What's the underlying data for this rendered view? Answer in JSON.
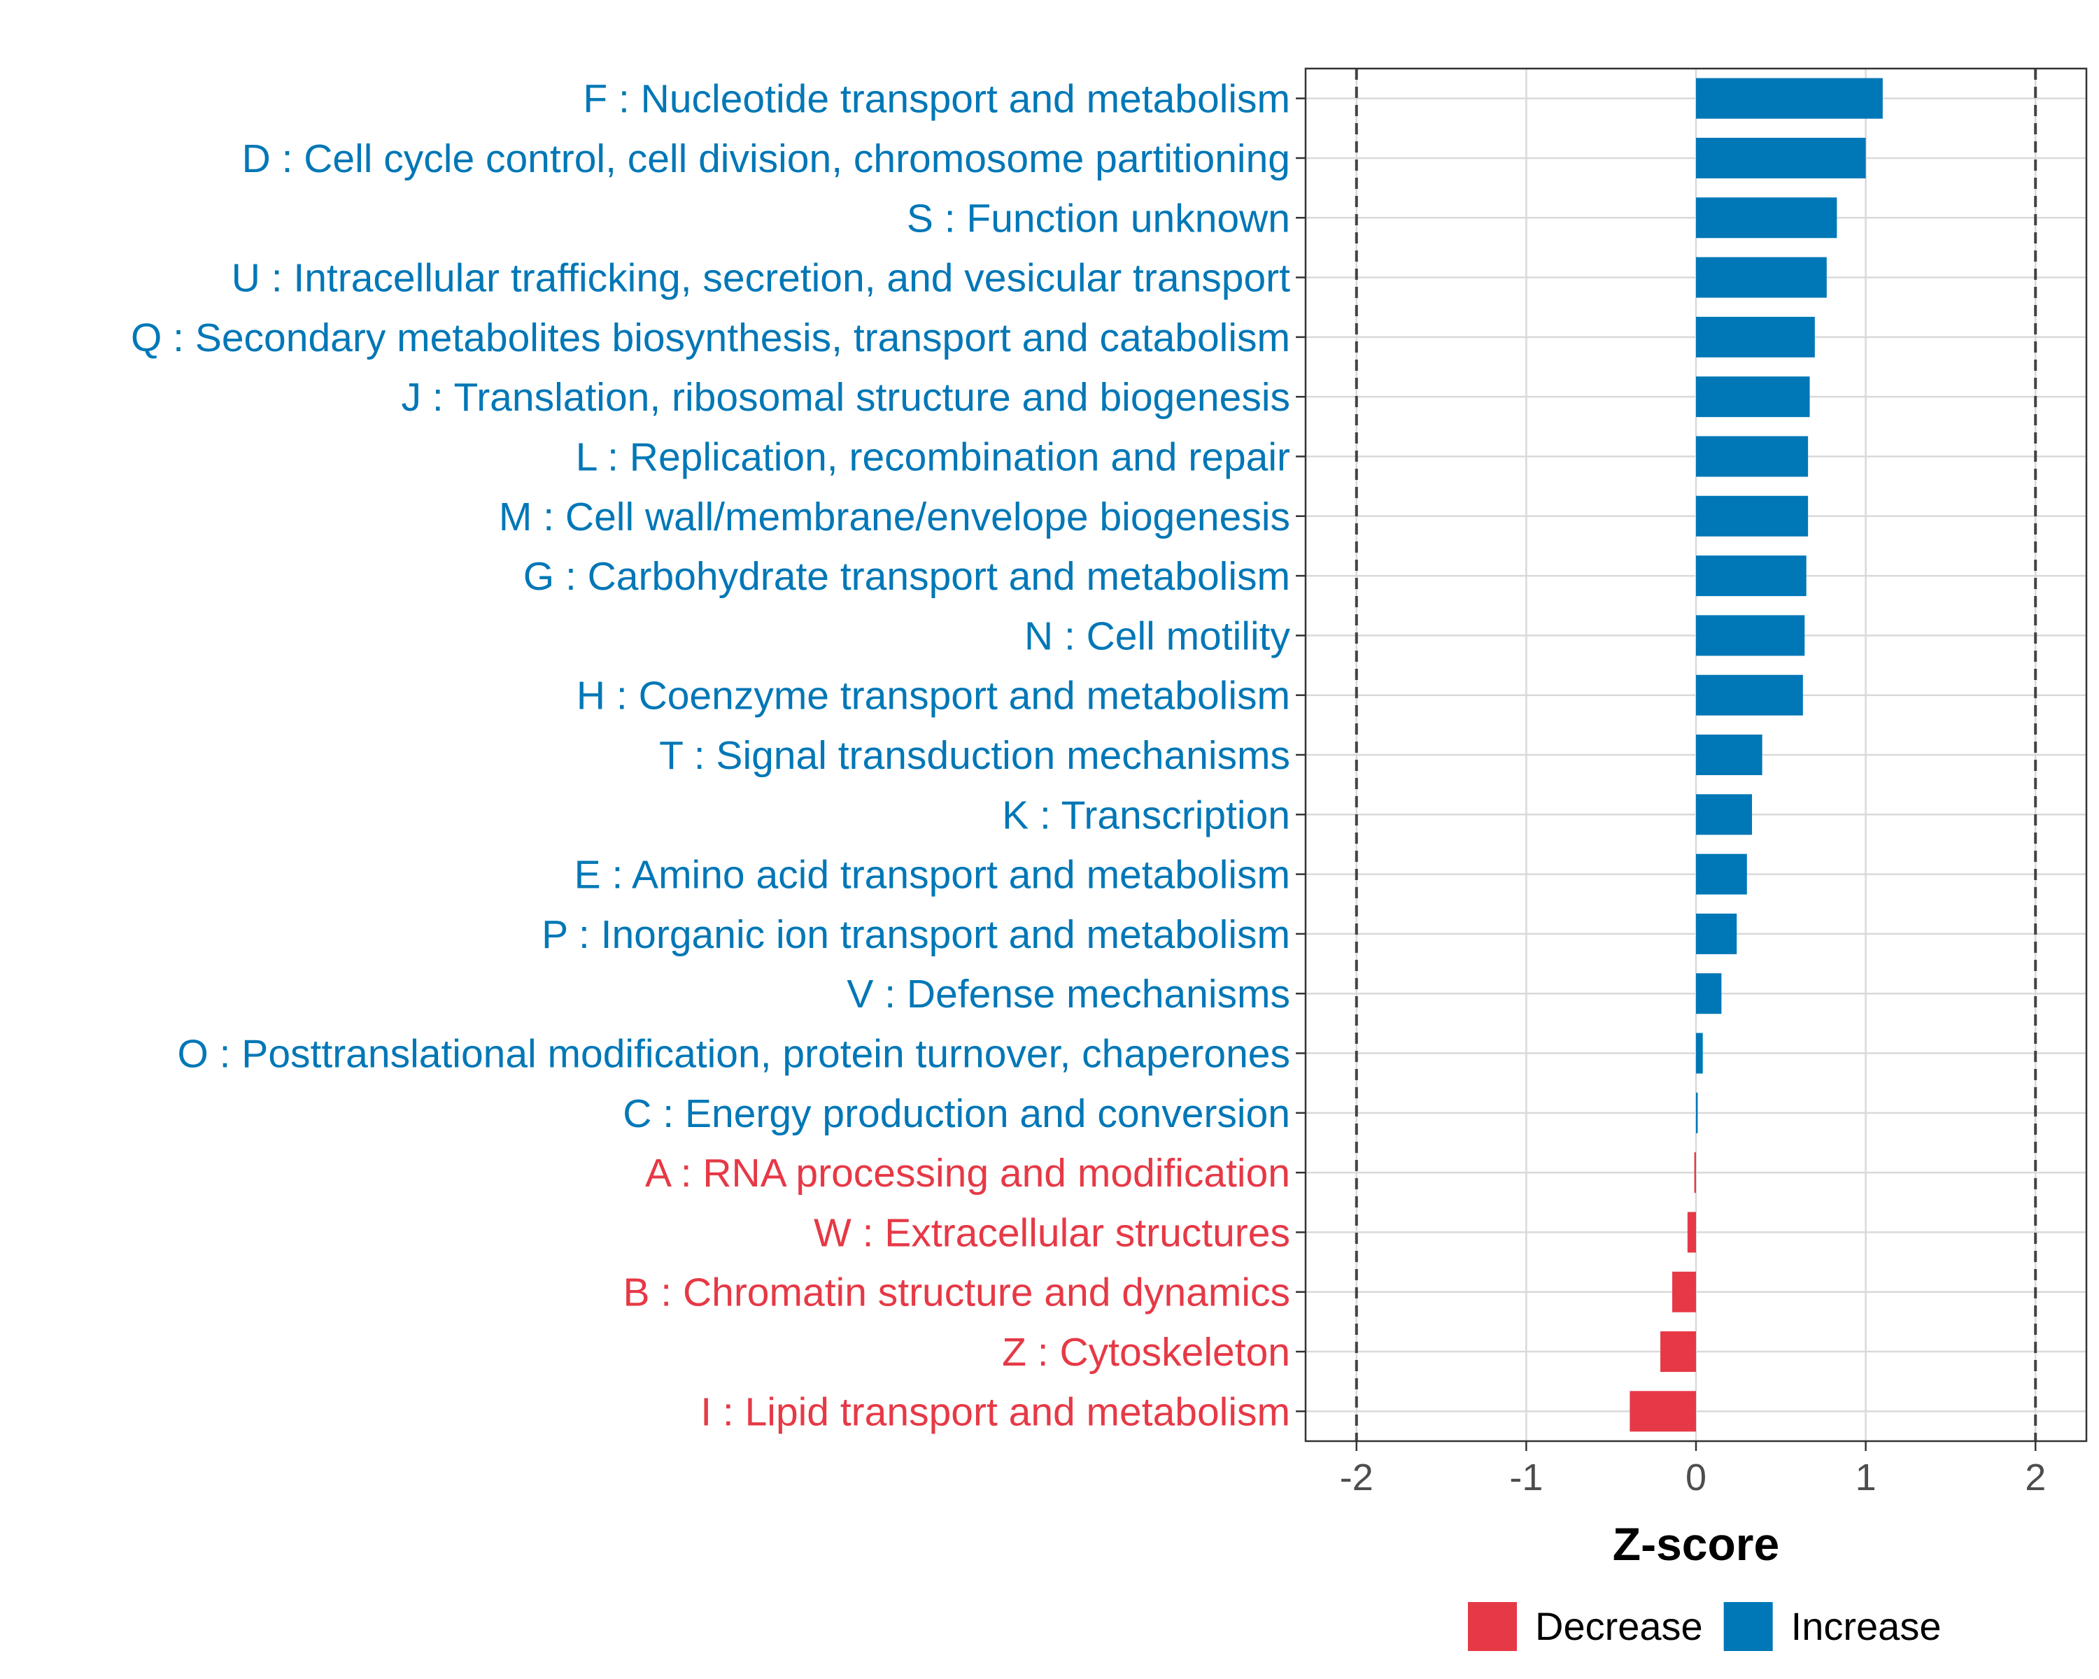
{
  "chart_data": {
    "type": "bar",
    "orientation": "horizontal",
    "xlabel": "Z-score",
    "ylabel": "",
    "xlim": [
      -2.3,
      2.3
    ],
    "x_ticks": [
      -2,
      -1,
      0,
      1,
      2
    ],
    "x_tick_labels": [
      "-2",
      "-1",
      "0",
      "1",
      "2"
    ],
    "reference_lines": [
      -2,
      2
    ],
    "grid": true,
    "categories": [
      "F : Nucleotide transport and metabolism",
      "D : Cell cycle control, cell division, chromosome partitioning",
      "S : Function unknown",
      "U : Intracellular trafficking, secretion, and vesicular transport",
      "Q : Secondary metabolites biosynthesis, transport and catabolism",
      "J : Translation, ribosomal structure and biogenesis",
      "L : Replication, recombination and repair",
      "M : Cell wall/membrane/envelope biogenesis",
      "G : Carbohydrate transport and metabolism",
      "N : Cell motility",
      "H : Coenzyme transport and metabolism",
      "T : Signal transduction mechanisms",
      "K : Transcription",
      "E : Amino acid transport and metabolism",
      "P : Inorganic ion transport and metabolism",
      "V : Defense mechanisms",
      "O : Posttranslational modification, protein turnover, chaperones",
      "C : Energy production and conversion",
      "A : RNA processing and modification",
      "W : Extracellular structures",
      "B : Chromatin structure and dynamics",
      "Z : Cytoskeleton",
      "I : Lipid transport and metabolism"
    ],
    "values": [
      1.1,
      1.0,
      0.83,
      0.77,
      0.7,
      0.67,
      0.66,
      0.66,
      0.65,
      0.64,
      0.63,
      0.39,
      0.33,
      0.3,
      0.24,
      0.15,
      0.04,
      0.01,
      -0.01,
      -0.05,
      -0.14,
      -0.21,
      -0.39
    ],
    "groups": [
      "Increase",
      "Increase",
      "Increase",
      "Increase",
      "Increase",
      "Increase",
      "Increase",
      "Increase",
      "Increase",
      "Increase",
      "Increase",
      "Increase",
      "Increase",
      "Increase",
      "Increase",
      "Increase",
      "Increase",
      "Increase",
      "Decrease",
      "Decrease",
      "Decrease",
      "Decrease",
      "Decrease"
    ],
    "legend": [
      {
        "name": "Decrease",
        "color": "#E63946"
      },
      {
        "name": "Increase",
        "color": "#0077B6"
      }
    ],
    "legend_position": "bottom"
  }
}
